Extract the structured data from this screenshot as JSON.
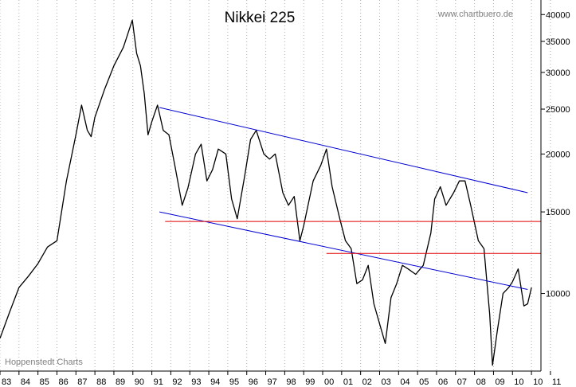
{
  "chart_data": {
    "type": "line",
    "title": "Nikkei 225",
    "source_label": "www.chartbuero.de",
    "footer_label": "Hoppenstedt Charts",
    "x_tick_labels": [
      "83",
      "84",
      "85",
      "86",
      "87",
      "88",
      "89",
      "90",
      "91",
      "92",
      "93",
      "94",
      "95",
      "96",
      "97",
      "98",
      "99",
      "00",
      "01",
      "02",
      "03",
      "04",
      "05",
      "06",
      "07",
      "08",
      "09",
      "10",
      "10",
      "11"
    ],
    "y_tick_labels": [
      "40000",
      "35000",
      "30000",
      "25000",
      "20000",
      "15000",
      "10000"
    ],
    "y_ticks": [
      40000,
      35000,
      30000,
      25000,
      20000,
      15000,
      10000
    ],
    "y_scale": "log",
    "ylim": [
      6800,
      43000
    ],
    "xlim": [
      1983.0,
      2011.5
    ],
    "grid": "vertical dotted at each year",
    "series": [
      {
        "color": "#000000",
        "x": [
          1983.0,
          1983.5,
          1984.0,
          1984.5,
          1985.0,
          1985.5,
          1986.0,
          1986.5,
          1987.0,
          1987.3,
          1987.6,
          1987.8,
          1988.0,
          1988.5,
          1989.0,
          1989.5,
          1989.97,
          1990.2,
          1990.4,
          1990.6,
          1990.8,
          1991.0,
          1991.3,
          1991.6,
          1991.9,
          1992.2,
          1992.6,
          1992.9,
          1993.3,
          1993.6,
          1993.9,
          1994.2,
          1994.5,
          1994.9,
          1995.2,
          1995.5,
          1995.9,
          1996.2,
          1996.5,
          1996.9,
          1997.2,
          1997.5,
          1997.9,
          1998.2,
          1998.5,
          1998.8,
          1999.0,
          1999.5,
          1999.9,
          2000.2,
          2000.5,
          2000.9,
          2001.2,
          2001.5,
          2001.8,
          2002.1,
          2002.4,
          2002.7,
          2003.0,
          2003.3,
          2003.6,
          2003.9,
          2004.2,
          2004.5,
          2004.9,
          2005.3,
          2005.7,
          2005.9,
          2006.2,
          2006.5,
          2006.9,
          2007.2,
          2007.5,
          2007.8,
          2008.2,
          2008.5,
          2008.8,
          2008.95,
          2009.2,
          2009.5,
          2009.8,
          2010.0,
          2010.3,
          2010.6,
          2010.8,
          2011.0
        ],
        "y": [
          8000,
          9100,
          10300,
          10900,
          11600,
          12600,
          13000,
          17500,
          22000,
          25500,
          22500,
          21800,
          24000,
          27500,
          31000,
          34000,
          38900,
          33000,
          31000,
          27000,
          22000,
          23500,
          25500,
          22500,
          22000,
          19000,
          15500,
          16900,
          20000,
          21000,
          17500,
          18500,
          20500,
          20000,
          16000,
          14500,
          18000,
          21500,
          22500,
          20000,
          19500,
          20000,
          16500,
          15500,
          16200,
          13000,
          14000,
          17500,
          18900,
          20500,
          17000,
          14500,
          13000,
          12500,
          10500,
          10700,
          11500,
          9500,
          8600,
          7800,
          9800,
          10500,
          11500,
          11300,
          11000,
          11500,
          13500,
          16000,
          17000,
          15500,
          16500,
          17500,
          17500,
          15500,
          13000,
          12500,
          9000,
          7000,
          8300,
          10000,
          10300,
          10600,
          11300,
          9400,
          9500,
          10300
        ]
      }
    ],
    "trend_lines": [
      {
        "color": "#0000d0",
        "x": [
          1991.4,
          2010.8
        ],
        "y": [
          25200,
          16500
        ]
      },
      {
        "color": "#0000d0",
        "x": [
          1991.4,
          2010.8
        ],
        "y": [
          15000,
          10200
        ]
      },
      {
        "color": "#e00000",
        "x": [
          1991.7,
          2011.5
        ],
        "y": [
          14300,
          14300
        ]
      },
      {
        "color": "#e00000",
        "x": [
          2000.2,
          2011.5
        ],
        "y": [
          12200,
          12200
        ]
      }
    ]
  }
}
